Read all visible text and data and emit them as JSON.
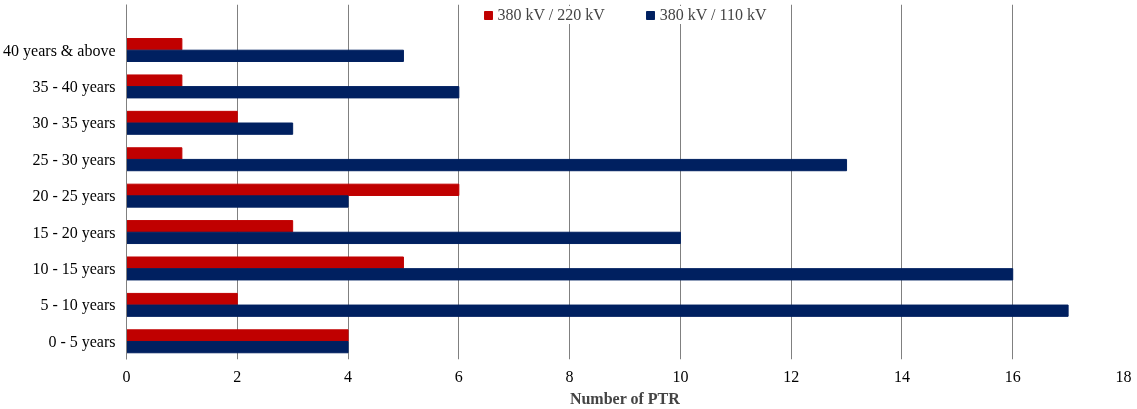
{
  "chart_data": {
    "type": "bar",
    "orientation": "horizontal",
    "xlabel": "Number of PTR",
    "categories": [
      "40 years & above",
      "35 - 40 years",
      "30 - 35 years",
      "25 - 30 years",
      "20 - 25 years",
      "15 - 20 years",
      "10 - 15 years",
      "5 - 10 years",
      "0 - 5 years"
    ],
    "series": [
      {
        "name": "380 kV / 220 kV",
        "color": "#c00000",
        "values": [
          1,
          1,
          2,
          1,
          6,
          3,
          5,
          2,
          4
        ]
      },
      {
        "name": "380 kV / 110 kV",
        "color": "#002060",
        "values": [
          5,
          6,
          3,
          13,
          4,
          10,
          16,
          17,
          4
        ]
      }
    ],
    "xlim": [
      0,
      18
    ],
    "xticks": [
      0,
      2,
      4,
      6,
      8,
      10,
      12,
      14,
      16,
      18
    ],
    "grid": "x",
    "legend": "top"
  }
}
